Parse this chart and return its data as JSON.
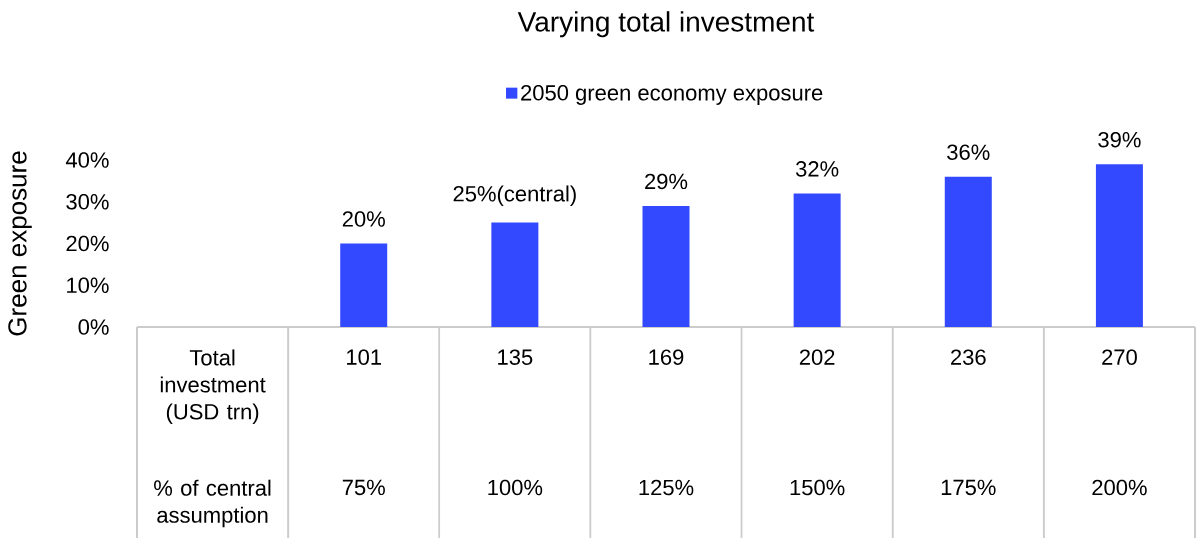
{
  "chart_data": {
    "type": "bar",
    "title": "Varying total investment",
    "ylabel": "Green exposure",
    "categories": [
      "Total investment (USD trn)",
      "101",
      "135",
      "169",
      "202",
      "236",
      "270"
    ],
    "series": [
      {
        "name": "2050 green economy exposure",
        "color": "#3349ff",
        "values": [
          null,
          20,
          25,
          29,
          32,
          36,
          39
        ],
        "value_labels": [
          null,
          "20%",
          "25%(central)",
          "29%",
          "32%",
          "36%",
          "39%"
        ]
      }
    ],
    "annotations": [
      "% of central assumption",
      "75%",
      "100%",
      "125%",
      "150%",
      "175%",
      "200%"
    ],
    "ylim": [
      0,
      40
    ],
    "yticks": [
      {
        "value": 0,
        "label": "0%"
      },
      {
        "value": 10,
        "label": "10%"
      },
      {
        "value": 20,
        "label": "20%"
      },
      {
        "value": 30,
        "label": "30%"
      },
      {
        "value": 40,
        "label": "40%"
      }
    ],
    "legend": "top",
    "grid": false
  }
}
